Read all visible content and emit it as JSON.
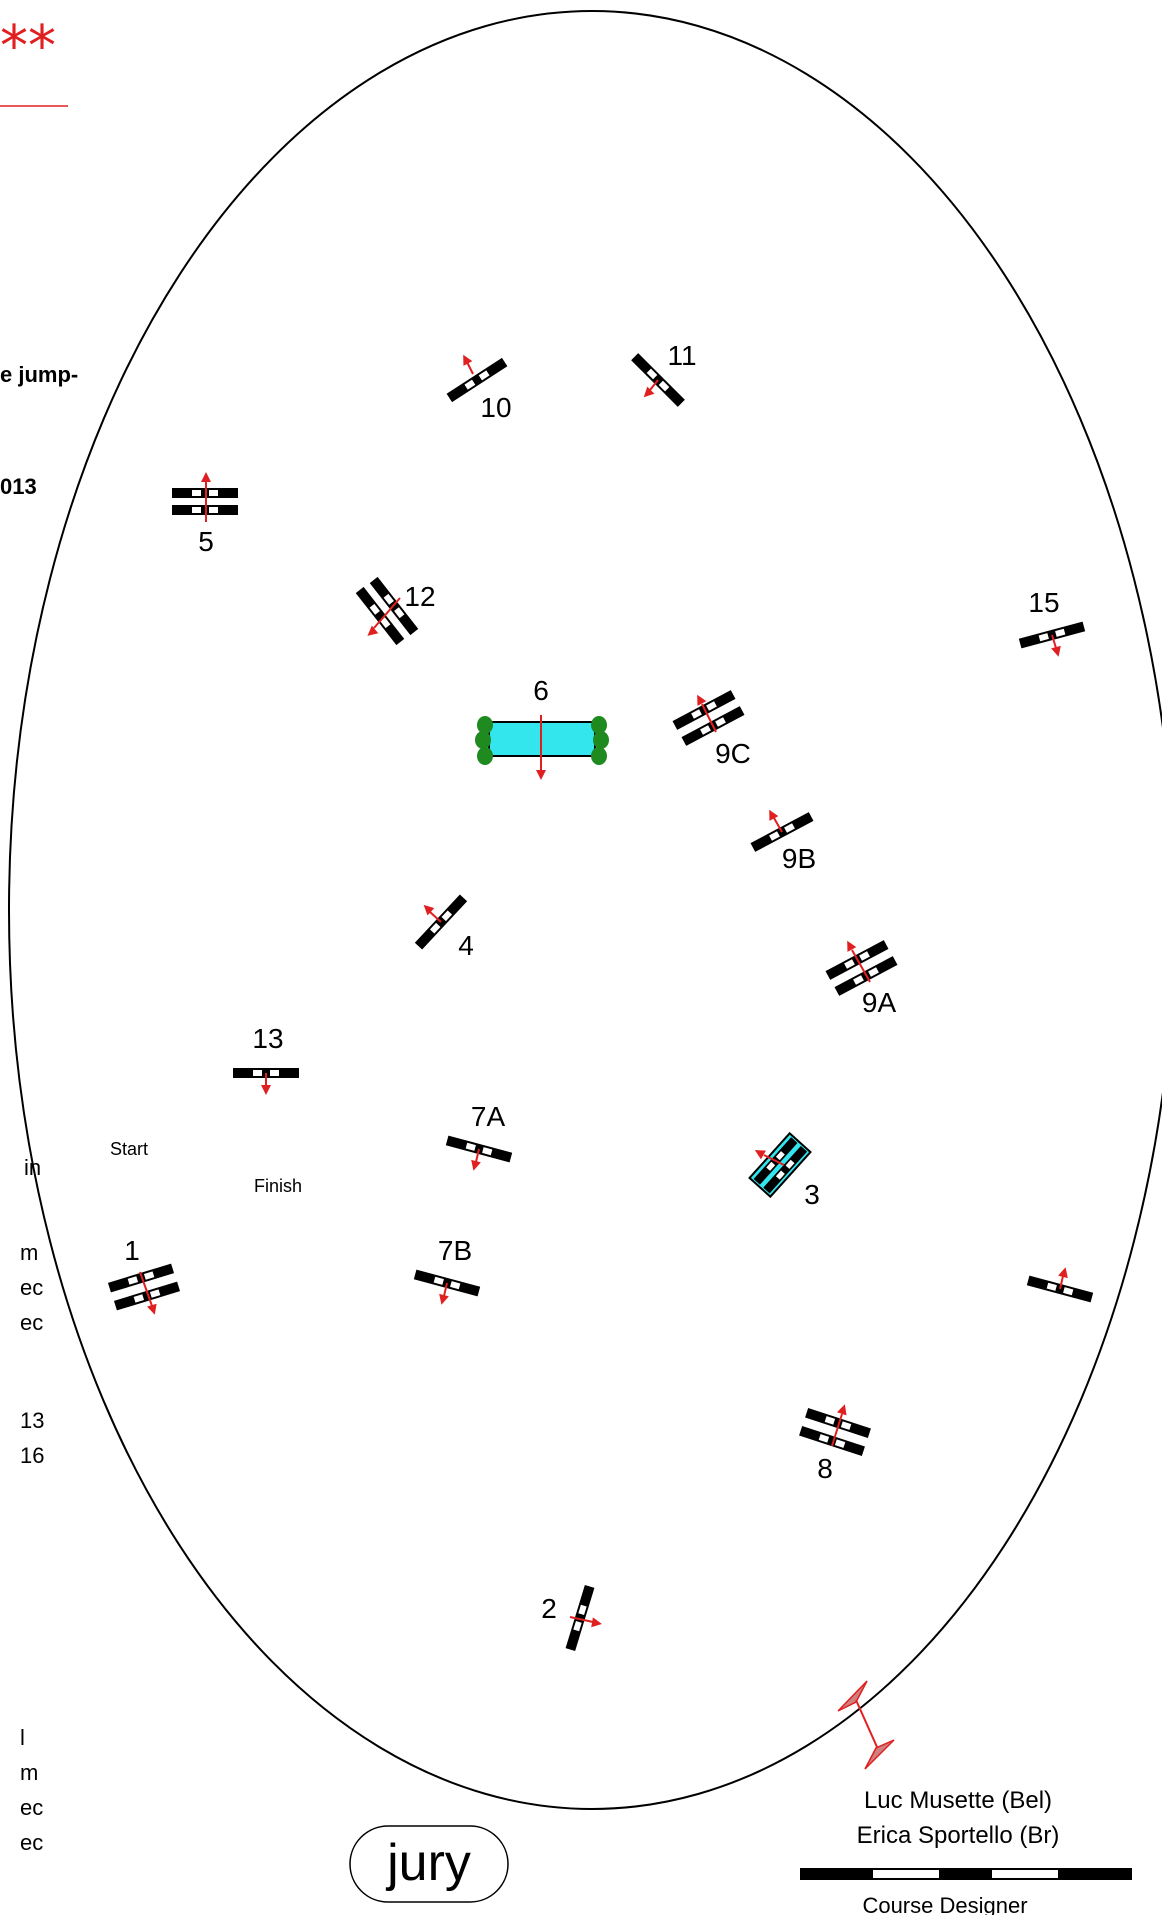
{
  "header": {
    "stars": "**"
  },
  "left_panel": {
    "title_fragment": "e jump-",
    "year_fragment": "013",
    "line_fragments": [
      "in",
      "m",
      "ec",
      "ec",
      "13",
      "16",
      "l",
      "m",
      "ec",
      "ec"
    ]
  },
  "course": {
    "start_label": "Start",
    "finish_label": "Finish",
    "obstacles": [
      "1",
      "2",
      "3",
      "4",
      "5",
      "6",
      "7A",
      "7B",
      "8",
      "9A",
      "9B",
      "9C",
      "10",
      "11",
      "12",
      "13",
      "15"
    ]
  },
  "jury": {
    "label": "jury"
  },
  "designers": {
    "line1": "Luc Musette (Bel)",
    "line2": "Erica Sportello (Br)",
    "caption": "Course Designer"
  },
  "colors": {
    "accent_red": "#e02020",
    "water_cyan": "#33e6ee",
    "bush_green": "#1f8a1f",
    "gate_fill": "#d08080"
  }
}
